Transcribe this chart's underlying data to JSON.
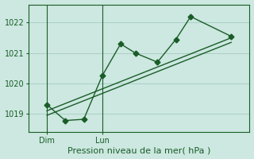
{
  "background_color": "#cce8e0",
  "grid_color": "#aacfc8",
  "line_color": "#1a5c28",
  "title": "Pression niveau de la mer( hPa )",
  "ylabel_ticks": [
    1019,
    1020,
    1021,
    1022
  ],
  "xlim": [
    0,
    12
  ],
  "ylim": [
    1018.4,
    1022.6
  ],
  "xtick_positions": [
    1.0,
    4.0
  ],
  "xtick_labels": [
    "Dim",
    "Lun"
  ],
  "vline_positions": [
    1.0,
    4.0
  ],
  "series1_x": [
    1.0,
    2.0,
    3.0,
    4.0,
    5.0,
    5.8,
    7.0,
    8.0,
    8.8,
    11.0
  ],
  "series1_y": [
    1019.3,
    1018.78,
    1018.82,
    1020.25,
    1021.3,
    1021.0,
    1020.7,
    1021.45,
    1022.2,
    1021.55
  ],
  "series2_x": [
    1.0,
    11.0
  ],
  "series2_y": [
    1018.95,
    1021.35
  ],
  "series3_x": [
    1.0,
    11.0
  ],
  "series3_y": [
    1019.1,
    1021.5
  ],
  "marker": "D",
  "markersize": 3.5,
  "linewidth": 1.0,
  "tick_fontsize": 7,
  "xlabel_fontsize": 8
}
